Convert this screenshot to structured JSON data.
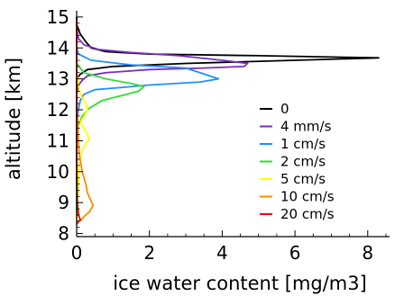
{
  "chart_data": {
    "type": "line",
    "title": "",
    "xlabel": "ice water content [mg/m3]",
    "ylabel": "altitude [km]",
    "xlim": [
      0,
      8.6
    ],
    "ylim": [
      7.9,
      15.2
    ],
    "xticks": [
      0,
      2,
      4,
      6,
      8
    ],
    "yticks": [
      8,
      9,
      10,
      11,
      12,
      13,
      14,
      15
    ],
    "grid": false,
    "legend_position": "center-right",
    "series": [
      {
        "name": "0",
        "color": "#000000",
        "points": [
          [
            0,
            15.0
          ],
          [
            0,
            14.75
          ],
          [
            0.1,
            14.45
          ],
          [
            0.25,
            14.2
          ],
          [
            0.4,
            14.0
          ],
          [
            0.8,
            13.88
          ],
          [
            2.0,
            13.8
          ],
          [
            5.0,
            13.75
          ],
          [
            8.3,
            13.68
          ],
          [
            6.0,
            13.6
          ],
          [
            3.0,
            13.5
          ],
          [
            1.0,
            13.4
          ],
          [
            0.3,
            13.3
          ],
          [
            0.1,
            13.15
          ],
          [
            0,
            13.0
          ],
          [
            0,
            12.0
          ],
          [
            0,
            11.0
          ],
          [
            0,
            10.0
          ],
          [
            0,
            9.0
          ],
          [
            0,
            8.4
          ]
        ]
      },
      {
        "name": "4 mm/s",
        "color": "#7b2fbe",
        "points": [
          [
            0,
            14.6
          ],
          [
            0.05,
            14.3
          ],
          [
            0.2,
            14.1
          ],
          [
            0.6,
            13.95
          ],
          [
            1.5,
            13.85
          ],
          [
            2.8,
            13.75
          ],
          [
            4.0,
            13.6
          ],
          [
            4.7,
            13.5
          ],
          [
            4.6,
            13.4
          ],
          [
            3.5,
            13.35
          ],
          [
            2.0,
            13.3
          ],
          [
            0.8,
            13.2
          ],
          [
            0.3,
            13.1
          ],
          [
            0.15,
            12.95
          ],
          [
            0.05,
            12.8
          ],
          [
            0,
            12.5
          ],
          [
            0,
            11.0
          ],
          [
            0,
            10.0
          ],
          [
            0,
            9.0
          ],
          [
            0,
            8.4
          ]
        ]
      },
      {
        "name": "1 cm/s",
        "color": "#1e90ff",
        "points": [
          [
            0,
            14.0
          ],
          [
            0.05,
            13.8
          ],
          [
            0.4,
            13.6
          ],
          [
            1.5,
            13.45
          ],
          [
            3.0,
            13.35
          ],
          [
            3.9,
            13.0
          ],
          [
            3.4,
            12.9
          ],
          [
            2.0,
            12.8
          ],
          [
            1.0,
            12.7
          ],
          [
            0.5,
            12.65
          ],
          [
            0.2,
            12.5
          ],
          [
            0.1,
            12.3
          ],
          [
            0.05,
            12.0
          ],
          [
            0,
            11.5
          ],
          [
            0,
            10.5
          ],
          [
            0,
            9.5
          ],
          [
            0,
            8.5
          ]
        ]
      },
      {
        "name": "2 cm/s",
        "color": "#33dd33",
        "points": [
          [
            0,
            13.5
          ],
          [
            0.2,
            13.2
          ],
          [
            0.8,
            13.0
          ],
          [
            1.5,
            12.85
          ],
          [
            1.85,
            12.75
          ],
          [
            1.7,
            12.6
          ],
          [
            1.2,
            12.45
          ],
          [
            0.7,
            12.3
          ],
          [
            0.35,
            12.05
          ],
          [
            0.15,
            11.8
          ],
          [
            0.05,
            11.5
          ],
          [
            0,
            11.0
          ],
          [
            0,
            10.0
          ],
          [
            0,
            9.0
          ],
          [
            0,
            8.4
          ]
        ]
      },
      {
        "name": "5 cm/s",
        "color": "#ffff00",
        "points": [
          [
            0,
            13.2
          ],
          [
            0.05,
            12.8
          ],
          [
            0.1,
            12.5
          ],
          [
            0.25,
            12.2
          ],
          [
            0.3,
            12.0
          ],
          [
            0.2,
            11.8
          ],
          [
            0.1,
            11.6
          ],
          [
            0.25,
            11.3
          ],
          [
            0.35,
            11.05
          ],
          [
            0.25,
            10.9
          ],
          [
            0.15,
            10.7
          ],
          [
            0.08,
            10.3
          ],
          [
            0.05,
            9.9
          ],
          [
            0.04,
            9.5
          ],
          [
            0.02,
            9.0
          ],
          [
            0,
            8.4
          ]
        ]
      },
      {
        "name": "10 cm/s",
        "color": "#ff8c00",
        "points": [
          [
            0,
            12.5
          ],
          [
            0.02,
            11.8
          ],
          [
            0.05,
            11.0
          ],
          [
            0.08,
            10.5
          ],
          [
            0.15,
            10.0
          ],
          [
            0.25,
            9.6
          ],
          [
            0.3,
            9.3
          ],
          [
            0.4,
            9.05
          ],
          [
            0.45,
            8.9
          ],
          [
            0.35,
            8.7
          ],
          [
            0.2,
            8.55
          ],
          [
            0.1,
            8.4
          ]
        ]
      },
      {
        "name": "20 cm/s",
        "color": "#ff0000",
        "points": [
          [
            0,
            14.9
          ],
          [
            0,
            13.0
          ],
          [
            0,
            11.0
          ],
          [
            0,
            10.0
          ],
          [
            0.02,
            9.0
          ],
          [
            0.05,
            8.6
          ],
          [
            0.1,
            8.45
          ],
          [
            0.03,
            8.35
          ],
          [
            0,
            8.3
          ]
        ]
      }
    ]
  }
}
